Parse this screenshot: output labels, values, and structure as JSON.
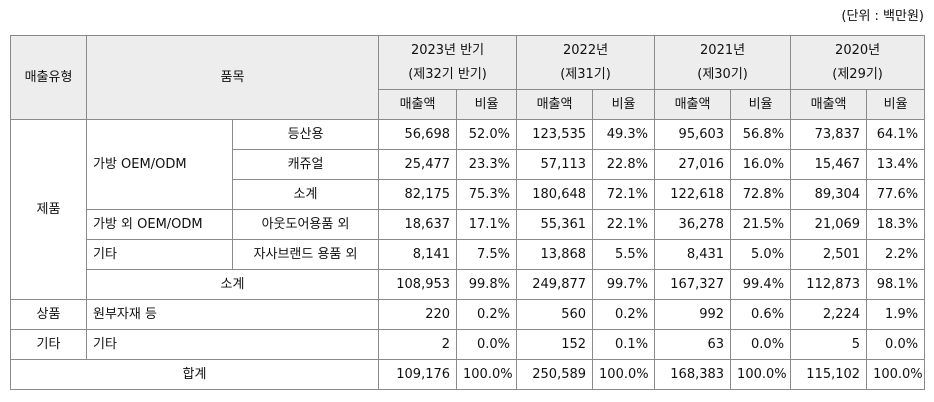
{
  "unit": "(단위 : 백만원)",
  "header": {
    "sales_type": "매출유형",
    "product": "품목",
    "periods": [
      {
        "year": "2023년 반기",
        "term": "(제32기 반기)"
      },
      {
        "year": "2022년",
        "term": "(제31기)"
      },
      {
        "year": "2021년",
        "term": "(제30기)"
      },
      {
        "year": "2020년",
        "term": "(제29기)"
      }
    ],
    "sales_label": "매출액",
    "ratio_label": "비율"
  },
  "sections": {
    "product": "제품",
    "goods": "상품",
    "other": "기타"
  },
  "subgroups": {
    "bag_oem": "가방 OEM/ODM",
    "non_bag_oem": "가방 외 OEM/ODM",
    "etc": "기타",
    "parts": "원부자재 등",
    "other_etc": "기타"
  },
  "rows": {
    "hiking": {
      "label": "등산용",
      "values": [
        "56,698",
        "52.0%",
        "123,535",
        "49.3%",
        "95,603",
        "56.8%",
        "73,837",
        "64.1%"
      ]
    },
    "casual": {
      "label": "캐쥬얼",
      "values": [
        "25,477",
        "23.3%",
        "57,113",
        "22.8%",
        "27,016",
        "16.0%",
        "15,467",
        "13.4%"
      ]
    },
    "bag_subtotal": {
      "label": "소계",
      "values": [
        "82,175",
        "75.3%",
        "180,648",
        "72.1%",
        "122,618",
        "72.8%",
        "89,304",
        "77.6%"
      ]
    },
    "outdoor": {
      "label": "아웃도어용품 외",
      "values": [
        "18,637",
        "17.1%",
        "55,361",
        "22.1%",
        "36,278",
        "21.5%",
        "21,069",
        "18.3%"
      ]
    },
    "own_brand": {
      "label": "자사브랜드 용품 외",
      "values": [
        "8,141",
        "7.5%",
        "13,868",
        "5.5%",
        "8,431",
        "5.0%",
        "2,501",
        "2.2%"
      ]
    },
    "product_subtotal": {
      "label": "소계",
      "values": [
        "108,953",
        "99.8%",
        "249,877",
        "99.7%",
        "167,327",
        "99.4%",
        "112,873",
        "98.1%"
      ]
    },
    "goods": {
      "values": [
        "220",
        "0.2%",
        "560",
        "0.2%",
        "992",
        "0.6%",
        "2,224",
        "1.9%"
      ]
    },
    "other": {
      "values": [
        "2",
        "0.0%",
        "152",
        "0.1%",
        "63",
        "0.0%",
        "5",
        "0.0%"
      ]
    },
    "total": {
      "label": "합계",
      "values": [
        "109,176",
        "100.0%",
        "250,589",
        "100.0%",
        "168,383",
        "100.0%",
        "115,102",
        "100.0%"
      ]
    }
  }
}
